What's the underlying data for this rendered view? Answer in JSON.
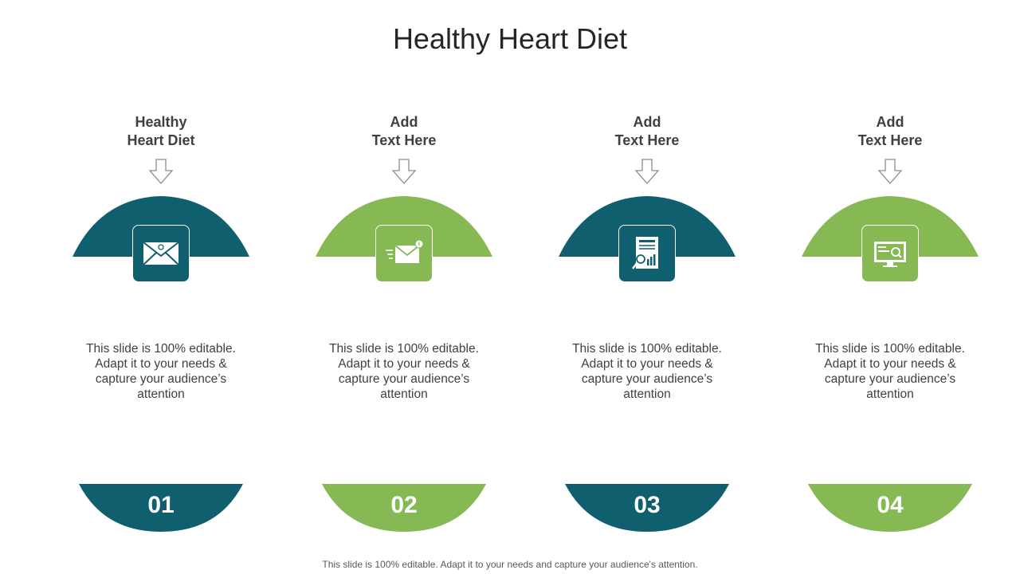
{
  "title": "Healthy Heart Diet",
  "colors": {
    "teal": "#0f5f6e",
    "green": "#86b854"
  },
  "columns": [
    {
      "heading_line1": "Healthy",
      "heading_line2": "Heart Diet",
      "body": "This slide is 100% editable. Adapt it to your needs & capture your audience’s attention",
      "number": "01",
      "color": "teal",
      "icon": "envelope-at-icon"
    },
    {
      "heading_line1": "Add",
      "heading_line2": "Text Here",
      "body": "This slide is 100% editable. Adapt it to your needs & capture your audience’s attention",
      "number": "02",
      "color": "green",
      "icon": "email-notification-icon"
    },
    {
      "heading_line1": "Add",
      "heading_line2": "Text Here",
      "body": "This slide is 100% editable. Adapt it to your needs & capture your audience’s attention",
      "number": "03",
      "color": "teal",
      "icon": "report-analysis-icon"
    },
    {
      "heading_line1": "Add",
      "heading_line2": "Text Here",
      "body": "This slide is 100% editable. Adapt it to your needs & capture your audience’s attention",
      "number": "04",
      "color": "green",
      "icon": "monitor-search-icon"
    }
  ],
  "footer": "This slide is 100% editable. Adapt it to your needs and capture your audience's attention."
}
